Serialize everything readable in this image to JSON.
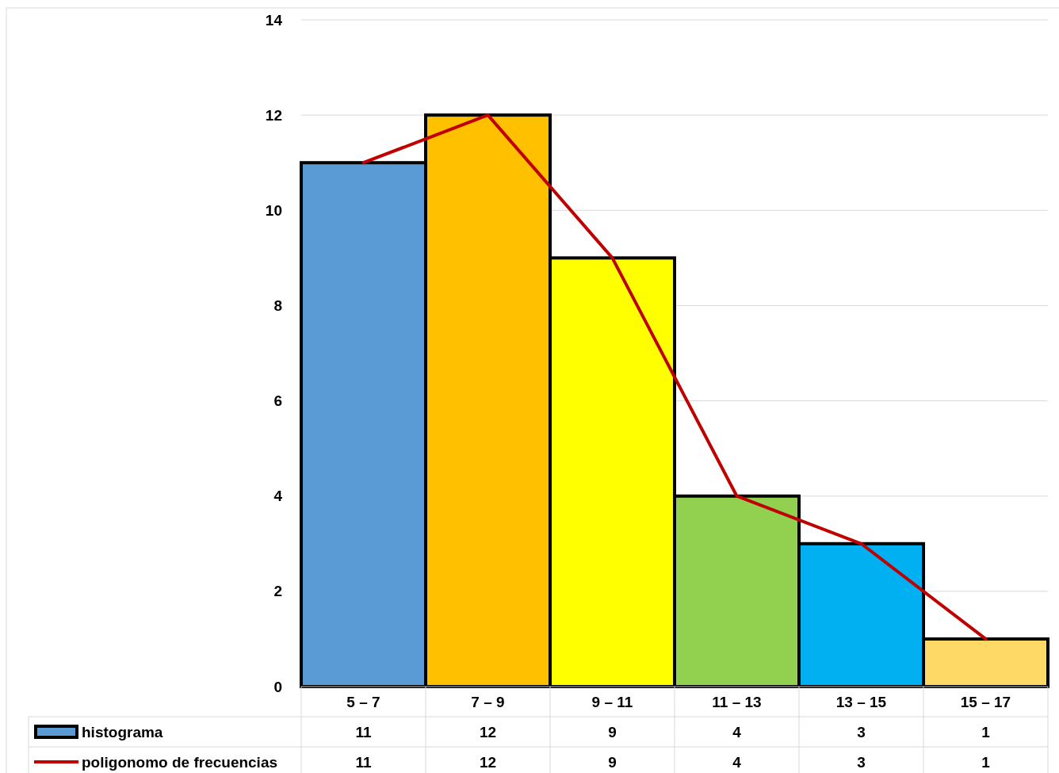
{
  "chart_data": {
    "type": "bar",
    "categories": [
      "5 – 7",
      "7 – 9",
      "9 – 11",
      "11 – 13",
      "13 – 15",
      "15 – 17"
    ],
    "series": [
      {
        "name": "histograma",
        "colors": [
          "#5b9bd5",
          "#ffc000",
          "#ffff00",
          "#92d050",
          "#00b0f0",
          "#ffd966"
        ],
        "color": "#5b9bd5",
        "values": [
          11,
          12,
          9,
          4,
          3,
          1
        ]
      },
      {
        "name": "poligonomo de frecuencias",
        "type": "line",
        "color": "#c00000",
        "values": [
          11,
          12,
          9,
          4,
          3,
          1
        ]
      }
    ],
    "ylim": [
      0,
      14
    ],
    "yticks": [
      0,
      2,
      4,
      6,
      8,
      10,
      12,
      14
    ],
    "grid": "y",
    "data_labels": true,
    "legend": "bottom left"
  }
}
